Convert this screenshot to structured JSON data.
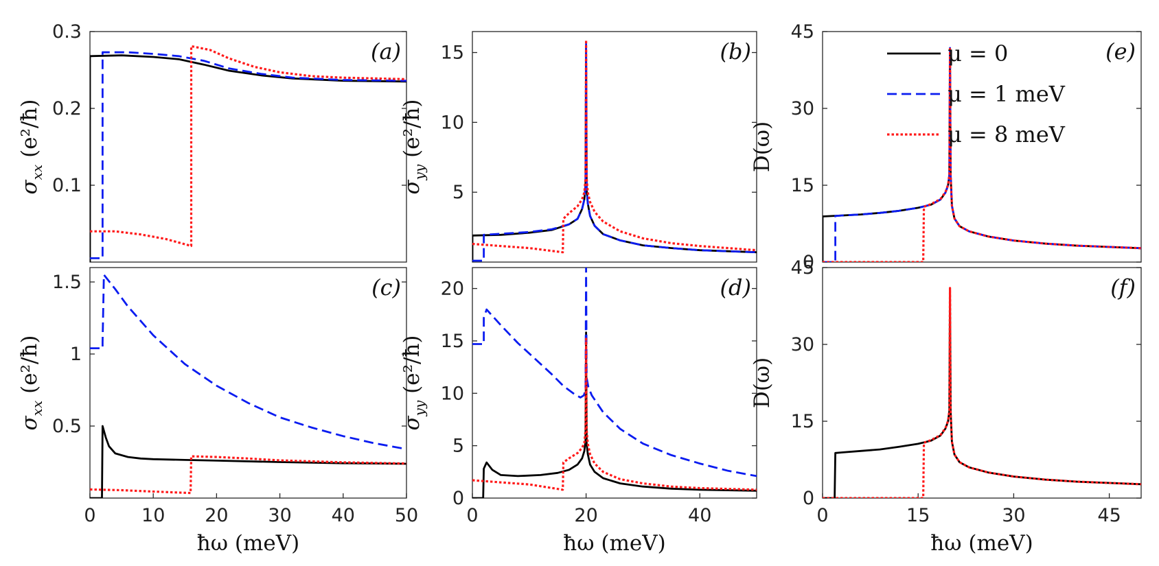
{
  "chart_data": [
    {
      "id": "a",
      "panel_label": "(a)",
      "type": "line",
      "ylabel": "σxx (e²/ħ)",
      "xlabel": "",
      "xlim": [
        0,
        50
      ],
      "ylim": [
        0,
        0.3
      ],
      "xticks": [],
      "yticks": [
        {
          "v": 0.1,
          "t": "0.1"
        },
        {
          "v": 0.2,
          "t": "0.2"
        },
        {
          "v": 0.3,
          "t": "0.3"
        }
      ],
      "series": [
        {
          "style": "black",
          "x": [
            0,
            0,
            5,
            10,
            14,
            18,
            22,
            27,
            32,
            40,
            50
          ],
          "y": [
            0,
            0.268,
            0.269,
            0.267,
            0.264,
            0.257,
            0.249,
            0.243,
            0.239,
            0.236,
            0.235
          ]
        },
        {
          "style": "blue",
          "x": [
            0,
            2,
            2,
            6,
            10,
            14,
            18,
            22,
            27,
            32,
            40,
            50
          ],
          "y": [
            0.005,
            0.005,
            0.273,
            0.273,
            0.271,
            0.268,
            0.262,
            0.252,
            0.245,
            0.24,
            0.237,
            0.236
          ]
        },
        {
          "style": "red",
          "x": [
            0,
            4,
            8,
            12,
            16,
            16,
            19,
            22,
            26,
            30,
            35,
            40,
            50
          ],
          "y": [
            0.04,
            0.04,
            0.036,
            0.03,
            0.021,
            0.281,
            0.276,
            0.265,
            0.254,
            0.247,
            0.242,
            0.24,
            0.238
          ]
        }
      ]
    },
    {
      "id": "b",
      "panel_label": "(b)",
      "type": "line",
      "ylabel": "σyy (e²/ħ)",
      "xlabel": "",
      "xlim": [
        0,
        50
      ],
      "ylim": [
        0,
        16.5
      ],
      "xticks": [],
      "yticks": [
        {
          "v": 5,
          "t": "5"
        },
        {
          "v": 10,
          "t": "10"
        },
        {
          "v": 15,
          "t": "15"
        }
      ],
      "series": [
        {
          "style": "black",
          "x": [
            0,
            0,
            5,
            10,
            14,
            17,
            18.5,
            19.3,
            19.7,
            19.9,
            20,
            20.1,
            20.3,
            20.7,
            21.5,
            23,
            26,
            30,
            35,
            40,
            50
          ],
          "y": [
            0,
            1.9,
            1.95,
            2.1,
            2.3,
            2.7,
            3.1,
            3.8,
            4.5,
            5.5,
            15.5,
            5.2,
            4.2,
            3.3,
            2.6,
            2.0,
            1.55,
            1.2,
            1.0,
            0.85,
            0.7
          ]
        },
        {
          "style": "blue",
          "x": [
            0,
            2,
            2,
            6,
            10,
            14,
            17,
            18.5,
            19.3,
            19.7,
            19.9,
            20,
            20.1,
            20.3,
            20.7,
            21.5,
            23,
            26,
            30,
            35,
            40,
            50
          ],
          "y": [
            0.1,
            0.1,
            1.95,
            2.05,
            2.15,
            2.35,
            2.7,
            3.1,
            3.8,
            4.5,
            5.5,
            15.6,
            5.2,
            4.2,
            3.3,
            2.6,
            2.0,
            1.55,
            1.2,
            1.0,
            0.85,
            0.7
          ]
        },
        {
          "style": "red",
          "x": [
            0,
            5,
            10,
            15.9,
            16,
            17,
            18.5,
            19.3,
            19.7,
            19.9,
            20,
            20.1,
            20.3,
            20.7,
            21.5,
            23,
            26,
            30,
            35,
            40,
            50
          ],
          "y": [
            1.3,
            1.15,
            1.0,
            0.7,
            3.1,
            3.5,
            4.0,
            4.5,
            5.0,
            6.0,
            15.9,
            6.0,
            5.0,
            4.3,
            3.6,
            2.9,
            2.2,
            1.7,
            1.35,
            1.15,
            0.85
          ]
        }
      ]
    },
    {
      "id": "e",
      "panel_label": "(e)",
      "type": "line",
      "ylabel": "D(ω)",
      "xlabel": "",
      "xlim": [
        0,
        50
      ],
      "ylim": [
        0,
        45
      ],
      "xticks": [],
      "yticks": [
        {
          "v": 0,
          "t": "0"
        },
        {
          "v": 15,
          "t": "15"
        },
        {
          "v": 30,
          "t": "30"
        },
        {
          "v": 45,
          "t": "45"
        }
      ],
      "series": [
        {
          "style": "black",
          "x": [
            0,
            0,
            3,
            6,
            9,
            12,
            15,
            17,
            18.5,
            19.3,
            19.7,
            19.9,
            20,
            20.1,
            20.3,
            20.7,
            21.5,
            23,
            26,
            30,
            35,
            40,
            50
          ],
          "y": [
            0,
            8.9,
            9.1,
            9.3,
            9.6,
            10.0,
            10.6,
            11.2,
            12.2,
            13.6,
            15.0,
            17.0,
            41.5,
            17.0,
            11.0,
            8.5,
            7.0,
            6.0,
            5.0,
            4.2,
            3.6,
            3.2,
            2.7
          ]
        },
        {
          "style": "blue",
          "x": [
            0,
            2,
            2,
            3,
            6,
            9,
            12,
            15,
            17,
            18.5,
            19.3,
            19.7,
            19.9,
            20,
            20.1,
            20.3,
            20.7,
            21.5,
            23,
            26,
            30,
            35,
            40,
            50
          ],
          "y": [
            0,
            0,
            9.0,
            9.1,
            9.3,
            9.6,
            10.0,
            10.6,
            11.2,
            12.2,
            13.6,
            15.0,
            17.0,
            41.8,
            17.0,
            11.0,
            8.5,
            7.0,
            6.0,
            5.0,
            4.2,
            3.6,
            3.2,
            2.7
          ]
        },
        {
          "style": "red",
          "x": [
            0,
            15.8,
            15.9,
            17,
            18.5,
            19.3,
            19.7,
            19.9,
            20,
            20.1,
            20.3,
            20.7,
            21.5,
            23,
            26,
            30,
            35,
            40,
            50
          ],
          "y": [
            0,
            0,
            10.8,
            11.3,
            12.3,
            13.7,
            15.1,
            17.1,
            41.6,
            17.1,
            11.0,
            8.5,
            7.0,
            6.0,
            5.0,
            4.2,
            3.6,
            3.2,
            2.7
          ]
        }
      ]
    },
    {
      "id": "c",
      "panel_label": "(c)",
      "type": "line",
      "ylabel": "σxx (e²/ħ)",
      "xlabel": "ħω (meV)",
      "xlim": [
        0,
        50
      ],
      "ylim": [
        0,
        1.6
      ],
      "xticks": [
        {
          "v": 0,
          "t": "0"
        },
        {
          "v": 10,
          "t": "10"
        },
        {
          "v": 20,
          "t": "20"
        },
        {
          "v": 30,
          "t": "30"
        },
        {
          "v": 40,
          "t": "40"
        },
        {
          "v": 50,
          "t": "50"
        }
      ],
      "yticks": [
        {
          "v": 0.5,
          "t": "0.5"
        },
        {
          "v": 1,
          "t": "1"
        },
        {
          "v": 1.5,
          "t": "1.5"
        }
      ],
      "series": [
        {
          "style": "black",
          "x": [
            0,
            1.9,
            2,
            2.5,
            3,
            4,
            6,
            8,
            10,
            15,
            20,
            30,
            40,
            50
          ],
          "y": [
            0,
            0,
            0.5,
            0.42,
            0.36,
            0.31,
            0.285,
            0.275,
            0.27,
            0.265,
            0.26,
            0.25,
            0.242,
            0.238
          ]
        },
        {
          "style": "blue",
          "x": [
            0,
            2,
            2,
            2.2,
            4,
            6,
            8,
            10,
            15,
            20,
            25,
            30,
            35,
            40,
            45,
            50
          ],
          "y": [
            1.04,
            1.04,
            1.08,
            1.55,
            1.45,
            1.33,
            1.23,
            1.13,
            0.93,
            0.78,
            0.66,
            0.56,
            0.49,
            0.43,
            0.38,
            0.34
          ]
        },
        {
          "style": "red",
          "x": [
            0,
            5,
            10,
            15.9,
            16,
            20,
            25,
            30,
            40,
            50
          ],
          "y": [
            0.06,
            0.055,
            0.045,
            0.035,
            0.29,
            0.285,
            0.275,
            0.262,
            0.248,
            0.24
          ]
        }
      ]
    },
    {
      "id": "d",
      "panel_label": "(d)",
      "type": "line",
      "ylabel": "σyy (e²/ħ)",
      "xlabel": "ħω (meV)",
      "xlim": [
        0,
        50
      ],
      "ylim": [
        0,
        22
      ],
      "xticks": [
        {
          "v": 0,
          "t": "0"
        },
        {
          "v": 20,
          "t": "20"
        },
        {
          "v": 40,
          "t": "40"
        }
      ],
      "yticks": [
        {
          "v": 0,
          "t": "0"
        },
        {
          "v": 5,
          "t": "5"
        },
        {
          "v": 10,
          "t": "10"
        },
        {
          "v": 15,
          "t": "15"
        },
        {
          "v": 20,
          "t": "20"
        }
      ],
      "series": [
        {
          "style": "black",
          "x": [
            0,
            1.9,
            2,
            2.5,
            3.5,
            5,
            8,
            12,
            15,
            17,
            18.5,
            19.3,
            19.7,
            19.9,
            20,
            20.1,
            20.3,
            20.7,
            21.5,
            23,
            26,
            30,
            35,
            40,
            50
          ],
          "y": [
            0,
            0,
            2.8,
            3.4,
            2.7,
            2.2,
            2.1,
            2.2,
            2.4,
            2.7,
            3.2,
            3.8,
            4.5,
            5.5,
            15.8,
            5.2,
            4.2,
            3.2,
            2.5,
            1.9,
            1.4,
            1.1,
            0.9,
            0.8,
            0.7
          ]
        },
        {
          "style": "blue",
          "x": [
            0,
            2,
            2,
            2.5,
            5,
            8,
            11,
            14,
            16,
            18,
            19,
            19.6,
            19.9,
            20,
            20.1,
            20.4,
            21,
            23,
            26,
            30,
            35,
            40,
            45,
            50
          ],
          "y": [
            14.7,
            14.7,
            17.2,
            18.0,
            16.5,
            14.8,
            13.3,
            11.8,
            10.7,
            9.9,
            9.6,
            9.8,
            10.3,
            22,
            11.5,
            10.6,
            9.8,
            8.2,
            6.6,
            5.2,
            4.1,
            3.3,
            2.6,
            2.1
          ]
        },
        {
          "style": "red",
          "x": [
            0,
            5,
            10,
            15.9,
            16,
            17,
            18.5,
            19.3,
            19.7,
            19.9,
            20,
            20.1,
            20.3,
            20.7,
            21.5,
            23,
            26,
            30,
            35,
            40,
            50
          ],
          "y": [
            1.7,
            1.5,
            1.3,
            0.8,
            3.4,
            3.8,
            4.3,
            4.8,
            5.3,
            6.5,
            15.2,
            6.5,
            5.2,
            4.2,
            3.3,
            2.5,
            1.8,
            1.4,
            1.1,
            0.95,
            0.8
          ]
        }
      ]
    },
    {
      "id": "f",
      "panel_label": "(f)",
      "type": "line",
      "ylabel": "D(ω)",
      "xlabel": "ħω (meV)",
      "xlim": [
        0,
        50
      ],
      "ylim": [
        0,
        45
      ],
      "xticks": [
        {
          "v": 0,
          "t": "0"
        },
        {
          "v": 15,
          "t": "15"
        },
        {
          "v": 30,
          "t": "30"
        },
        {
          "v": 45,
          "t": "45"
        }
      ],
      "yticks": [
        {
          "v": 0,
          "t": "0"
        },
        {
          "v": 15,
          "t": "15"
        },
        {
          "v": 30,
          "t": "30"
        },
        {
          "v": 45,
          "t": "45"
        }
      ],
      "series": [
        {
          "style": "black",
          "x": [
            0,
            1.9,
            2,
            3,
            6,
            9,
            12,
            15,
            17,
            18.5,
            19.3,
            19.7,
            19.9,
            20,
            20.1,
            20.3,
            20.7,
            21.5,
            23,
            26,
            30,
            35,
            40,
            50
          ],
          "y": [
            0,
            0,
            8.8,
            8.9,
            9.2,
            9.5,
            10.0,
            10.6,
            11.2,
            12.2,
            13.6,
            15.0,
            17.0,
            40.8,
            17.0,
            11.0,
            8.5,
            7.0,
            6.0,
            5.0,
            4.2,
            3.6,
            3.2,
            2.7
          ]
        },
        {
          "style": "red",
          "x": [
            0,
            15.8,
            15.9,
            17,
            18.5,
            19.3,
            19.7,
            19.9,
            20,
            20.1,
            20.3,
            20.7,
            21.5,
            23,
            26,
            30,
            35,
            40,
            50
          ],
          "y": [
            0,
            0,
            10.8,
            11.3,
            12.3,
            13.7,
            15.1,
            17.1,
            41.0,
            17.1,
            11.0,
            8.5,
            7.0,
            6.0,
            5.0,
            4.2,
            3.6,
            3.2,
            2.7
          ]
        }
      ]
    }
  ],
  "legend": {
    "placement": "panel (e), top-left",
    "entries": [
      {
        "style": "black",
        "label": "μ = 0"
      },
      {
        "style": "blue",
        "label": "μ = 1 meV"
      },
      {
        "style": "red",
        "label": "μ = 8 meV"
      }
    ]
  },
  "colors": {
    "black": "#000000",
    "blue": "#0a1cf0",
    "red": "#ff1a1a"
  }
}
